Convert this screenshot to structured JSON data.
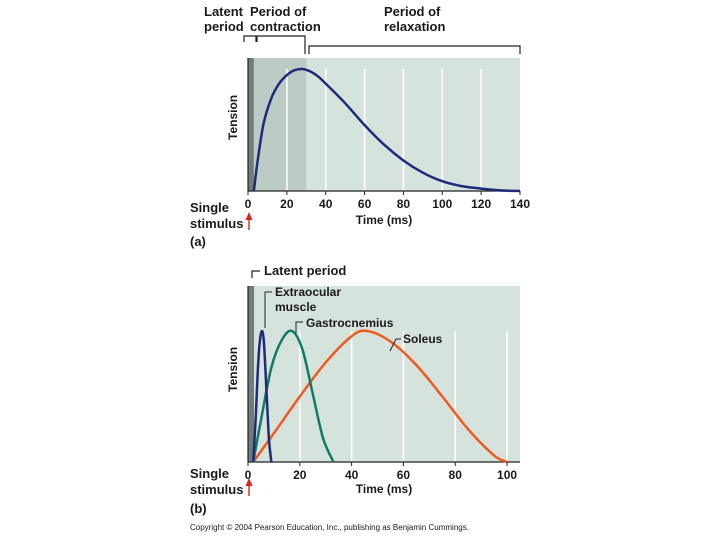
{
  "chart_data": [
    {
      "panel": "(a)",
      "type": "line",
      "xlabel": "Time (ms)",
      "ylabel": "Tension",
      "xlim": [
        0,
        140
      ],
      "x_ticks": [
        0,
        20,
        40,
        60,
        80,
        100,
        120,
        140
      ],
      "stimulus_label": [
        "Single",
        "stimulus"
      ],
      "phases": [
        {
          "label": [
            "Latent",
            "period"
          ],
          "x_start": 0,
          "x_end": 3
        },
        {
          "label": [
            "Period of",
            "contraction"
          ],
          "x_start": 3,
          "x_end": 30
        },
        {
          "label": [
            "Period of",
            "relaxation"
          ],
          "x_start": 30,
          "x_end": 140
        }
      ],
      "series": [
        {
          "color": "#1f2a7a",
          "x": [
            3,
            5,
            8,
            12,
            16,
            20,
            24,
            28,
            32,
            36,
            40,
            50,
            60,
            70,
            80,
            90,
            100,
            110,
            120,
            130,
            140
          ],
          "y": [
            0,
            0.25,
            0.55,
            0.76,
            0.88,
            0.95,
            0.99,
            1.0,
            0.98,
            0.94,
            0.88,
            0.72,
            0.54,
            0.38,
            0.25,
            0.15,
            0.08,
            0.04,
            0.02,
            0.005,
            0.0
          ]
        }
      ]
    },
    {
      "panel": "(b)",
      "type": "line",
      "xlabel": "Time (ms)",
      "ylabel": "Tension",
      "xlim": [
        0,
        105
      ],
      "x_ticks": [
        0,
        20,
        40,
        60,
        80,
        100
      ],
      "stimulus_label": [
        "Single",
        "stimulus"
      ],
      "latent_label": "Latent period",
      "latent_end": 2,
      "series": [
        {
          "name": [
            "Extraocular",
            "muscle"
          ],
          "color": "#1f2a7a",
          "x": [
            2,
            3,
            4,
            5,
            6,
            7,
            8,
            9
          ],
          "y": [
            0,
            0.35,
            0.78,
            0.98,
            0.95,
            0.6,
            0.2,
            0
          ]
        },
        {
          "name": [
            "Gastrocnemius"
          ],
          "color": "#117a66",
          "x": [
            2,
            5,
            9,
            13,
            17,
            21,
            25,
            29,
            33
          ],
          "y": [
            0,
            0.32,
            0.72,
            0.93,
            1.0,
            0.86,
            0.52,
            0.18,
            0
          ]
        },
        {
          "name": [
            "Soleus"
          ],
          "color": "#f05a1e",
          "x": [
            2,
            10,
            20,
            30,
            40,
            46,
            55,
            65,
            75,
            85,
            95,
            100
          ],
          "y": [
            0,
            0.22,
            0.5,
            0.76,
            0.96,
            1.0,
            0.92,
            0.74,
            0.5,
            0.25,
            0.05,
            0
          ]
        }
      ]
    }
  ],
  "copyright": "Copyright © 2004 Pearson Education, Inc., publishing as Benjamin Cummings."
}
